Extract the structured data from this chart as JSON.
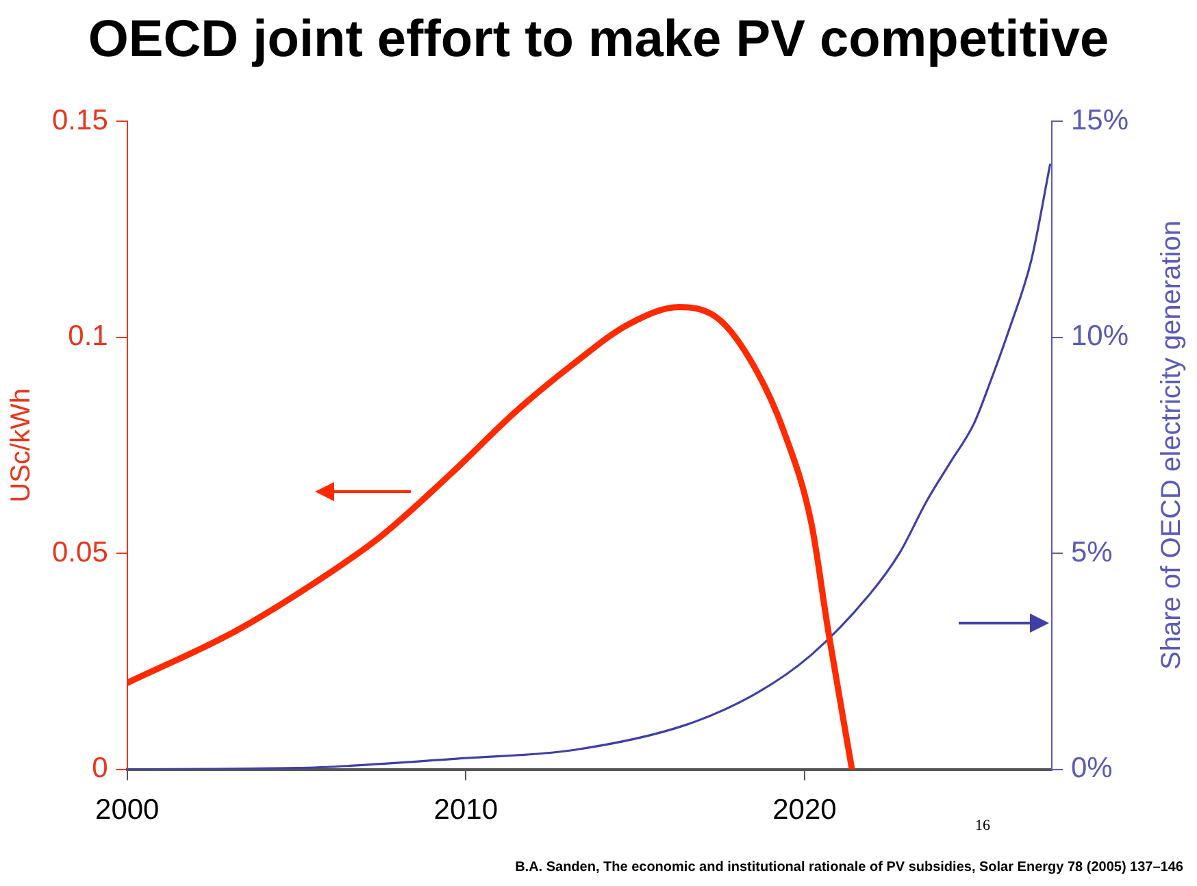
{
  "chart_data": {
    "type": "line",
    "title": "OECD joint effort to make PV competitive",
    "ylabel": "USc/kWh",
    "y2label": "Share of OECD electricity generation",
    "xlim": [
      2000,
      2027.3
    ],
    "xticks": [
      2000,
      2010,
      2020
    ],
    "ylim": [
      0,
      0.15
    ],
    "yticks": [
      0,
      0.05,
      0.1,
      0.15
    ],
    "y2lim": [
      0,
      15
    ],
    "y2ticks": [
      {
        "value": 0,
        "label": "0%"
      },
      {
        "value": 5,
        "label": "5%"
      },
      {
        "value": 10,
        "label": "10%"
      },
      {
        "value": 15,
        "label": "15%"
      }
    ],
    "grid": false,
    "marker": "none",
    "series": [
      {
        "type": "line",
        "color": "#ff2a00",
        "x": [
          2000,
          2003.2,
          2005.5,
          2007.5,
          2009.5,
          2011.5,
          2013.2,
          2014.8,
          2016.3,
          2017.5,
          2018.6,
          2019.4,
          2020.2,
          2020.7,
          2021.4
        ],
        "values": [
          0.02,
          0.032,
          0.043,
          0.054,
          0.068,
          0.083,
          0.094,
          0.103,
          0.107,
          0.104,
          0.092,
          0.078,
          0.057,
          0.032,
          0
        ]
      },
      {
        "type": "line",
        "axis": "y2",
        "color": "#3f3fa8",
        "x": [
          2000,
          2005,
          2010,
          2013.2,
          2016.5,
          2018.6,
          2020.2,
          2021.9,
          2022.8,
          2023.6,
          2024.3,
          2025,
          2025.5,
          2026.05,
          2026.7,
          2027.25
        ],
        "values": [
          0,
          0.03,
          0.26,
          0.45,
          1.03,
          1.77,
          2.65,
          4.03,
          5,
          6.2,
          7.1,
          8,
          9,
          10.2,
          11.8,
          14
        ]
      }
    ],
    "annotations": [
      "16",
      "B.A. Sanden, The economic and institutional rationale of PV subsidies, Solar Energy 78 (2005) 137–146"
    ]
  }
}
